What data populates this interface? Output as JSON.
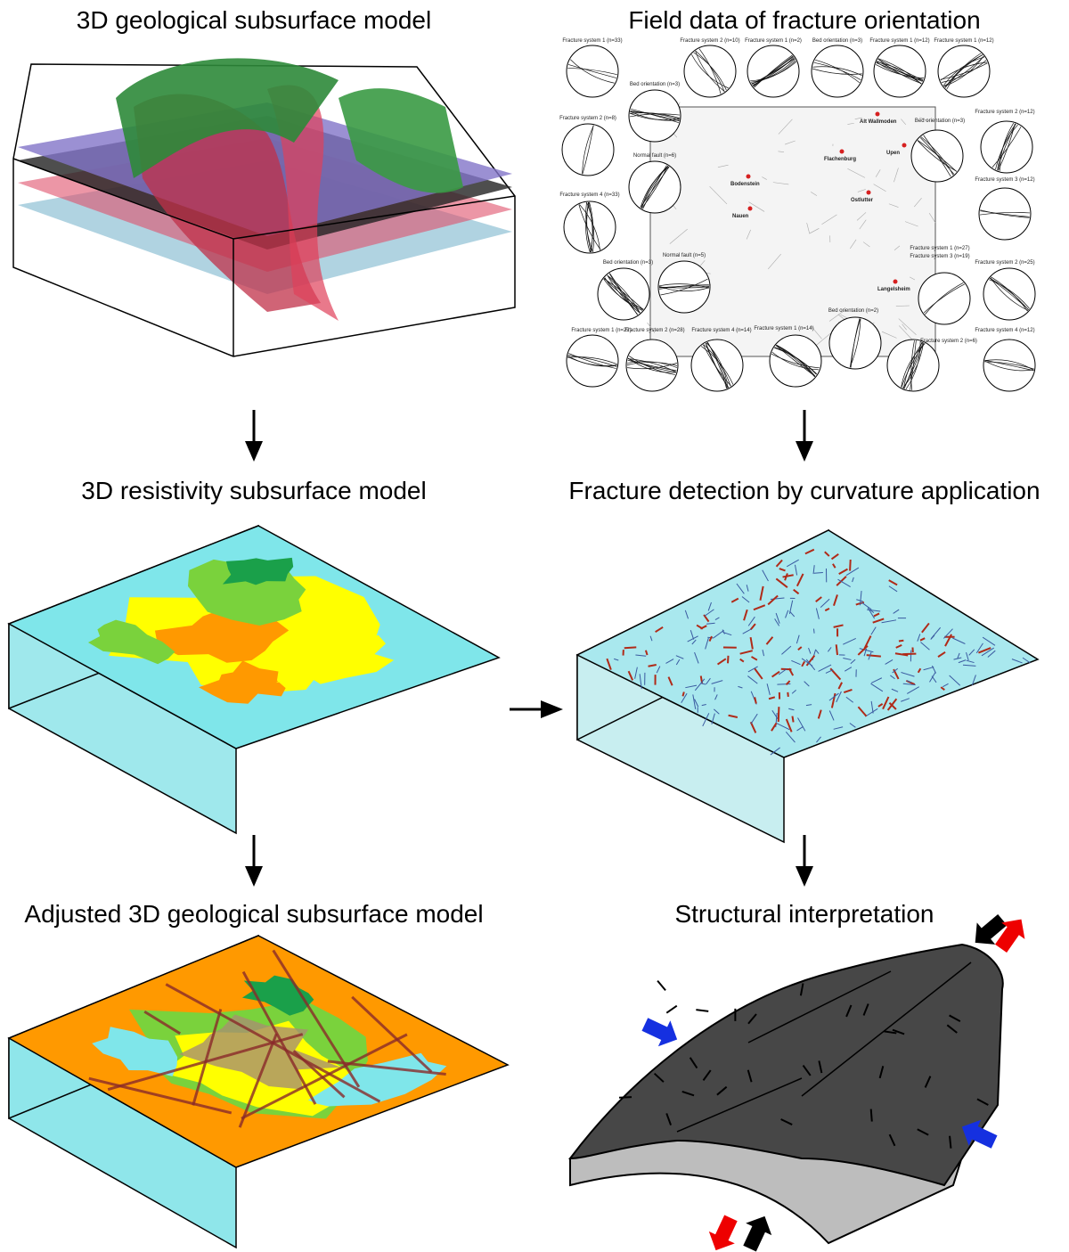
{
  "panels": [
    {
      "title": "3D geological subsurface model"
    },
    {
      "title": "Field data of fracture orientation"
    },
    {
      "title": "3D resistivity subsurface model"
    },
    {
      "title": "Fracture detection by curvature application"
    },
    {
      "title": "Adjusted 3D geological subsurface model"
    },
    {
      "title": "Structural interpretation"
    }
  ],
  "stereonet_labels": [
    "Fracture system 1 (n=33)",
    "Fracture system 2 (n=10)",
    "Fracture system 1 (n=2)",
    "Bed orientation (n=3)",
    "Fracture system 1 (n=12)",
    "Fracture system 1 (n=12)",
    "Bed orientation (n=3)",
    "Fracture system 2 (n=8)",
    "Normal fault (n=6)",
    "Fracture system 4 (n=33)",
    "Bed orientation (n=3)",
    "Normal fault (n=5)",
    "Fracture system 1 (n=22)",
    "Fracture system 2 (n=28)",
    "Fracture system 4 (n=14)",
    "Fracture system 1 (n=14)",
    "Bed orientation (n=2)",
    "Bed orientation (n=3)",
    "Fracture system 2 (n=12)",
    "Fracture system 3 (n=12)",
    "Fracture system 1 (n=27)",
    "Fracture system 3 (n=19)",
    "Fracture system 2 (n=25)",
    "Fracture system 2 (n=6)",
    "Fracture system 4 (n=12)"
  ],
  "towns": [
    "Alt Wallmoden",
    "Upen",
    "Flachenburg",
    "Bodenstein",
    "Ostlutter",
    "Nauen",
    "Langelsheim"
  ]
}
